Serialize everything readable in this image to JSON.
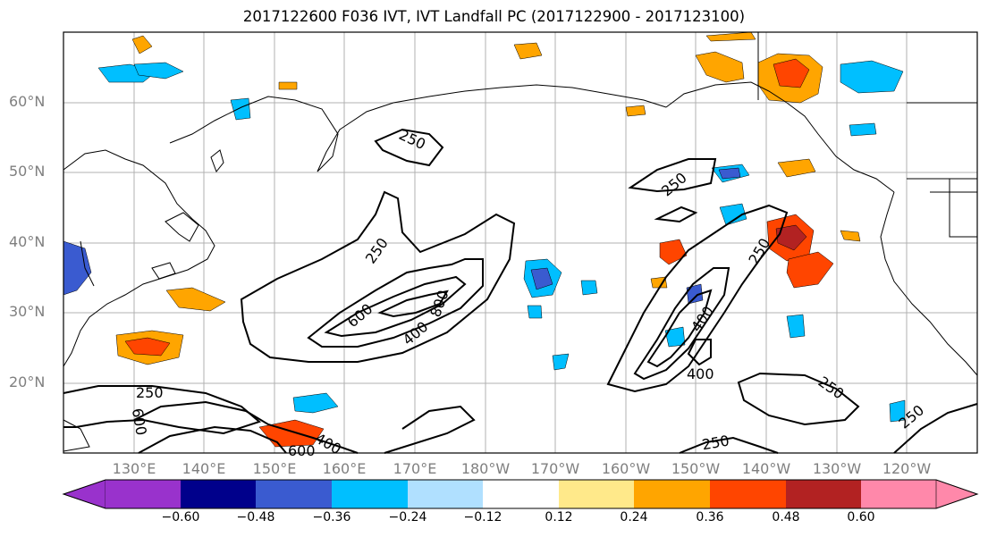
{
  "title": "2017122600 F036 IVT, IVT Landfall PC (2017122900 - 2017123100)",
  "lat_labels": [
    "60°N",
    "50°N",
    "40°N",
    "30°N",
    "20°N"
  ],
  "lon_labels": [
    "130°E",
    "140°E",
    "150°E",
    "160°E",
    "170°E",
    "180°W",
    "170°W",
    "160°W",
    "150°W",
    "140°W",
    "130°W",
    "120°W"
  ],
  "contour_labels": [
    "250",
    "250",
    "250",
    "600",
    "400",
    "800",
    "250",
    "400",
    "400",
    "250",
    "250",
    "250",
    "600",
    "400",
    "600",
    "250",
    "250",
    "250"
  ],
  "colorbar": {
    "ticks": [
      "−0.60",
      "−0.48",
      "−0.36",
      "−0.24",
      "−0.12",
      "0.12",
      "0.24",
      "0.36",
      "0.48",
      "0.60"
    ],
    "colors": [
      "#9932cc",
      "#00008b",
      "#3a5bd0",
      "#00bfff",
      "#b0e0ff",
      "#ffffff",
      "#ffe98a",
      "#ffa500",
      "#ff4500",
      "#b22222",
      "#ff88aa"
    ]
  }
}
